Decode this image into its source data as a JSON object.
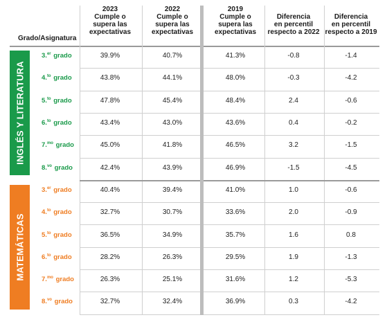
{
  "header": {
    "grado_asignatura": "Grado/Asignatura",
    "columns": [
      {
        "year": "2023",
        "lines": [
          "Cumple o",
          "supera las",
          "expectativas"
        ]
      },
      {
        "year": "2022",
        "lines": [
          "Cumple o",
          "supera las",
          "expectativas"
        ]
      },
      {
        "year": "2019",
        "lines": [
          "Cumple o",
          "supera las",
          "expectativas"
        ]
      },
      {
        "year": "",
        "lines": [
          "Diferencia",
          "en percentil",
          "respecto a 2022"
        ]
      },
      {
        "year": "",
        "lines": [
          "Diferencia",
          "en percentil",
          "respecto a 2019"
        ]
      }
    ]
  },
  "sections": [
    {
      "label": "INGLÉS Y LITERATURA",
      "color": "#1a9a4a",
      "rows": [
        {
          "num": "3.",
          "sup": "er",
          "word": "grado",
          "values": [
            "39.9%",
            "40.7%",
            "41.3%",
            "-0.8",
            "-1.4"
          ]
        },
        {
          "num": "4.",
          "sup": "to",
          "word": "grado",
          "values": [
            "43.8%",
            "44.1%",
            "48.0%",
            "-0.3",
            "-4.2"
          ]
        },
        {
          "num": "5.",
          "sup": "to",
          "word": "grado",
          "values": [
            "47.8%",
            "45.4%",
            "48.4%",
            "2.4",
            "-0.6"
          ]
        },
        {
          "num": "6.",
          "sup": "to",
          "word": "grado",
          "values": [
            "43.4%",
            "43.0%",
            "43.6%",
            "0.4",
            "-0.2"
          ]
        },
        {
          "num": "7.",
          "sup": "mo",
          "word": "grado",
          "values": [
            "45.0%",
            "41.8%",
            "46.5%",
            "3.2",
            "-1.5"
          ]
        },
        {
          "num": "8.",
          "sup": "vo",
          "word": "grado",
          "values": [
            "42.4%",
            "43.9%",
            "46.9%",
            "-1.5",
            "-4.5"
          ]
        }
      ]
    },
    {
      "label": "MATEMÁTICAS",
      "color": "#ef7d22",
      "rows": [
        {
          "num": "3.",
          "sup": "er",
          "word": "grado",
          "values": [
            "40.4%",
            "39.4%",
            "41.0%",
            "1.0",
            "-0.6"
          ]
        },
        {
          "num": "4.",
          "sup": "to",
          "word": "grado",
          "values": [
            "32.7%",
            "30.7%",
            "33.6%",
            "2.0",
            "-0.9"
          ]
        },
        {
          "num": "5.",
          "sup": "to",
          "word": "grado",
          "values": [
            "36.5%",
            "34.9%",
            "35.7%",
            "1.6",
            "0.8"
          ]
        },
        {
          "num": "6.",
          "sup": "to",
          "word": "grado",
          "values": [
            "28.2%",
            "26.3%",
            "29.5%",
            "1.9",
            "-1.3"
          ]
        },
        {
          "num": "7.",
          "sup": "mo",
          "word": "grado",
          "values": [
            "26.3%",
            "25.1%",
            "31.6%",
            "1.2",
            "-5.3"
          ]
        },
        {
          "num": "8.",
          "sup": "vo",
          "word": "grado",
          "values": [
            "32.7%",
            "32.4%",
            "36.9%",
            "0.3",
            "-4.2"
          ]
        }
      ]
    }
  ]
}
